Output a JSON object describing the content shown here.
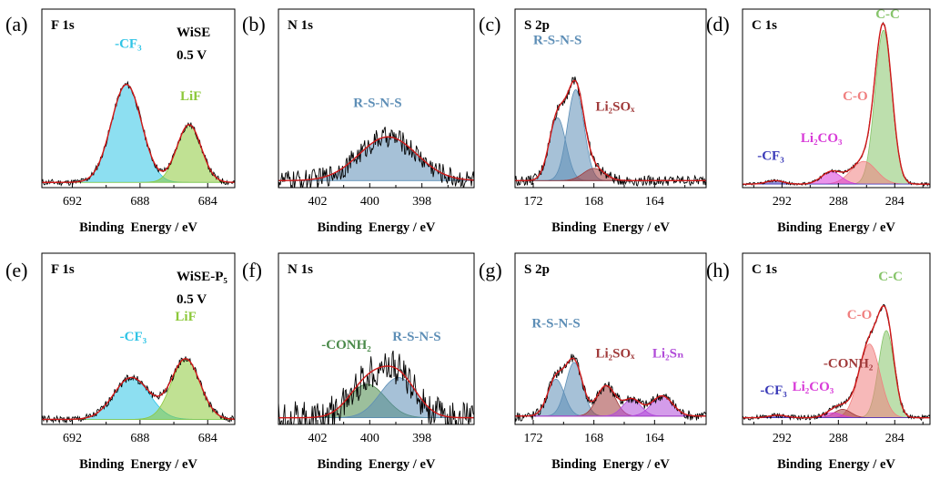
{
  "figure": {
    "colors": {
      "frame": "#000000",
      "fit": "#d01818",
      "raw": "#000000",
      "cf3": "#2fc4e6",
      "lif": "#8cc83a",
      "rsns": "#5d8eb6",
      "li2sox": "#a03a3a",
      "li2sn": "#b04ad8",
      "cc": "#86c46a",
      "co": "#f07f7f",
      "li2co3": "#d83ad8",
      "conh2": "#4a8a4a",
      "cf3_c1s": "#3a3ab8"
    }
  },
  "chart_data": [
    {
      "id": "a",
      "type": "area",
      "panel_label": "(a)",
      "title": "F 1s",
      "sample": "WiSE",
      "potential": "0.5 V",
      "xlabel": "Binding  Energy / eV",
      "xlim": [
        693.8,
        682.4
      ],
      "ylim": [
        0,
        1
      ],
      "xticks": [
        692,
        688,
        684
      ],
      "peaks": [
        {
          "name": "-CF₃",
          "color_key": "cf3",
          "center": 688.8,
          "sigma": 0.9,
          "height": 0.56
        },
        {
          "name": "LiF",
          "color_key": "lif",
          "center": 685.1,
          "sigma": 0.72,
          "height": 0.33
        }
      ],
      "baseline": 0.03,
      "noise": 0.018,
      "labels": [
        {
          "text": "-CF₃",
          "color_key": "cf3",
          "x": 688.7,
          "y": 0.8
        },
        {
          "text": "LiF",
          "color_key": "lif",
          "x": 685.0,
          "y": 0.5
        }
      ]
    },
    {
      "id": "b",
      "type": "area",
      "panel_label": "(b)",
      "title": "N 1s",
      "xlabel": "Binding  Energy / eV",
      "xlim": [
        403.5,
        396.0
      ],
      "ylim": [
        0,
        1
      ],
      "xticks": [
        402,
        400,
        398
      ],
      "peaks": [
        {
          "name": "R-S-N-S",
          "color_key": "rsns",
          "center": 399.3,
          "sigma": 1.1,
          "height": 0.25
        }
      ],
      "baseline": 0.04,
      "noise": 0.06,
      "labels": [
        {
          "text": "R-S-N-S",
          "color_key": "rsns",
          "x": 399.7,
          "y": 0.46
        }
      ]
    },
    {
      "id": "c",
      "type": "area",
      "panel_label": "(c)",
      "title": "S 2p",
      "xlabel": "Binding  Energy / eV",
      "xlim": [
        173.2,
        160.6
      ],
      "ylim": [
        0,
        1
      ],
      "xticks": [
        172,
        168,
        164
      ],
      "peaks": [
        {
          "name": "R-S-N-S",
          "color_key": "rsns",
          "center": 170.4,
          "sigma": 0.55,
          "height": 0.36
        },
        {
          "name": "R-S-N-S",
          "color_key": "rsns",
          "center": 169.2,
          "sigma": 0.55,
          "height": 0.52
        },
        {
          "name": "Li₂SOₓ",
          "color_key": "li2sox",
          "center": 168.0,
          "sigma": 0.7,
          "height": 0.07
        }
      ],
      "baseline": 0.04,
      "noise": 0.03,
      "labels": [
        {
          "text": "R-S-N-S",
          "color_key": "rsns",
          "x": 170.4,
          "y": 0.82
        },
        {
          "text": "Li₂SOₓ",
          "color_key": "li2sox",
          "x": 166.6,
          "y": 0.44
        }
      ]
    },
    {
      "id": "d",
      "type": "area",
      "panel_label": "(d)",
      "title": "C 1s",
      "xlabel": "Binding  Energy / eV",
      "xlim": [
        294.8,
        281.5
      ],
      "ylim": [
        0,
        1
      ],
      "xticks": [
        292,
        288,
        284
      ],
      "peaks": [
        {
          "name": "C-C",
          "color_key": "cc",
          "center": 284.8,
          "sigma": 0.6,
          "height": 0.88
        },
        {
          "name": "C-O",
          "color_key": "co",
          "center": 286.2,
          "sigma": 0.9,
          "height": 0.13
        },
        {
          "name": "Li₂CO₃",
          "color_key": "li2co3",
          "center": 288.5,
          "sigma": 0.7,
          "height": 0.07
        },
        {
          "name": "-CF₃",
          "color_key": "cf3_c1s",
          "center": 292.5,
          "sigma": 0.6,
          "height": 0.02
        }
      ],
      "baseline": 0.02,
      "noise": 0.008,
      "labels": [
        {
          "text": "C-C",
          "color_key": "cc",
          "x": 284.5,
          "y": 0.97
        },
        {
          "text": "C-O",
          "color_key": "co",
          "x": 286.8,
          "y": 0.5
        },
        {
          "text": "Li₂CO₃",
          "color_key": "li2co3",
          "x": 289.2,
          "y": 0.26
        },
        {
          "text": "-CF₃",
          "color_key": "cf3_c1s",
          "x": 292.8,
          "y": 0.16
        }
      ]
    },
    {
      "id": "e",
      "type": "area",
      "panel_label": "(e)",
      "title": "F 1s",
      "sample": "WiSE-P₅",
      "potential": "0.5 V",
      "xlabel": "Binding  Energy / eV",
      "xlim": [
        693.8,
        682.4
      ],
      "ylim": [
        0,
        1
      ],
      "xticks": [
        692,
        688,
        684
      ],
      "peaks": [
        {
          "name": "-CF₃",
          "color_key": "cf3",
          "center": 688.5,
          "sigma": 1.05,
          "height": 0.25
        },
        {
          "name": "LiF",
          "color_key": "lif",
          "center": 685.3,
          "sigma": 0.85,
          "height": 0.36
        }
      ],
      "baseline": 0.03,
      "noise": 0.022,
      "labels": [
        {
          "text": "-CF₃",
          "color_key": "cf3",
          "x": 688.4,
          "y": 0.5
        },
        {
          "text": "LiF",
          "color_key": "lif",
          "x": 685.3,
          "y": 0.62
        }
      ]
    },
    {
      "id": "f",
      "type": "area",
      "panel_label": "(f)",
      "title": "N 1s",
      "xlabel": "Binding  Energy / eV",
      "xlim": [
        403.5,
        396.0
      ],
      "ylim": [
        0,
        1
      ],
      "xticks": [
        402,
        400,
        398
      ],
      "peaks": [
        {
          "name": "-CONH₂",
          "color_key": "conh2",
          "center": 400.1,
          "sigma": 0.7,
          "height": 0.2
        },
        {
          "name": "R-S-N-S",
          "color_key": "rsns",
          "center": 398.9,
          "sigma": 0.7,
          "height": 0.24
        }
      ],
      "baseline": 0.04,
      "noise": 0.1,
      "labels": [
        {
          "text": "-CONH₂",
          "color_key": "conh2",
          "x": 400.9,
          "y": 0.45
        },
        {
          "text": "R-S-N-S",
          "color_key": "rsns",
          "x": 398.2,
          "y": 0.5
        }
      ]
    },
    {
      "id": "g",
      "type": "area",
      "panel_label": "(g)",
      "title": "S 2p",
      "xlabel": "Binding  Energy / eV",
      "xlim": [
        173.2,
        160.6
      ],
      "ylim": [
        0,
        1
      ],
      "xticks": [
        172,
        168,
        164
      ],
      "peaks": [
        {
          "name": "R-S-N-S",
          "color_key": "rsns",
          "center": 170.5,
          "sigma": 0.55,
          "height": 0.22
        },
        {
          "name": "R-S-N-S",
          "color_key": "rsns",
          "center": 169.3,
          "sigma": 0.55,
          "height": 0.32
        },
        {
          "name": "Li₂SOₓ",
          "color_key": "li2sox",
          "center": 167.2,
          "sigma": 0.6,
          "height": 0.18
        },
        {
          "name": "Li₂Sₙ",
          "color_key": "li2sn",
          "center": 165.5,
          "sigma": 0.6,
          "height": 0.1
        },
        {
          "name": "Li₂Sₙ",
          "color_key": "li2sn",
          "center": 163.5,
          "sigma": 0.7,
          "height": 0.12
        }
      ],
      "baseline": 0.05,
      "noise": 0.03,
      "labels": [
        {
          "text": "R-S-N-S",
          "color_key": "rsns",
          "x": 170.5,
          "y": 0.58
        },
        {
          "text": "Li₂SOₓ",
          "color_key": "li2sox",
          "x": 166.6,
          "y": 0.4
        },
        {
          "text": "Li₂Sₙ",
          "color_key": "li2sn",
          "x": 163.1,
          "y": 0.4
        }
      ]
    },
    {
      "id": "h",
      "type": "area",
      "panel_label": "(h)",
      "title": "C 1s",
      "xlabel": "Binding  Energy / eV",
      "xlim": [
        294.8,
        281.5
      ],
      "ylim": [
        0,
        1
      ],
      "xticks": [
        292,
        288,
        284
      ],
      "peaks": [
        {
          "name": "C-C",
          "color_key": "cc",
          "center": 284.6,
          "sigma": 0.55,
          "height": 0.52
        },
        {
          "name": "C-O",
          "color_key": "co",
          "center": 285.8,
          "sigma": 0.75,
          "height": 0.44
        },
        {
          "name": "-CONH₂",
          "color_key": "li2sox",
          "center": 287.7,
          "sigma": 0.6,
          "height": 0.05
        },
        {
          "name": "Li₂CO₃",
          "color_key": "li2co3",
          "center": 288.4,
          "sigma": 0.6,
          "height": 0.03
        },
        {
          "name": "-CF₃",
          "color_key": "cf3_c1s",
          "center": 292.3,
          "sigma": 0.6,
          "height": 0.015
        }
      ],
      "baseline": 0.04,
      "noise": 0.015,
      "labels": [
        {
          "text": "C-C",
          "color_key": "cc",
          "x": 284.3,
          "y": 0.86
        },
        {
          "text": "C-O",
          "color_key": "co",
          "x": 286.5,
          "y": 0.63
        },
        {
          "text": "-CONH₂",
          "color_key": "li2sox",
          "x": 287.3,
          "y": 0.34
        },
        {
          "text": "Li₂CO₃",
          "color_key": "li2co3",
          "x": 289.8,
          "y": 0.2
        },
        {
          "text": "-CF₃",
          "color_key": "cf3_c1s",
          "x": 292.6,
          "y": 0.18
        }
      ]
    }
  ]
}
